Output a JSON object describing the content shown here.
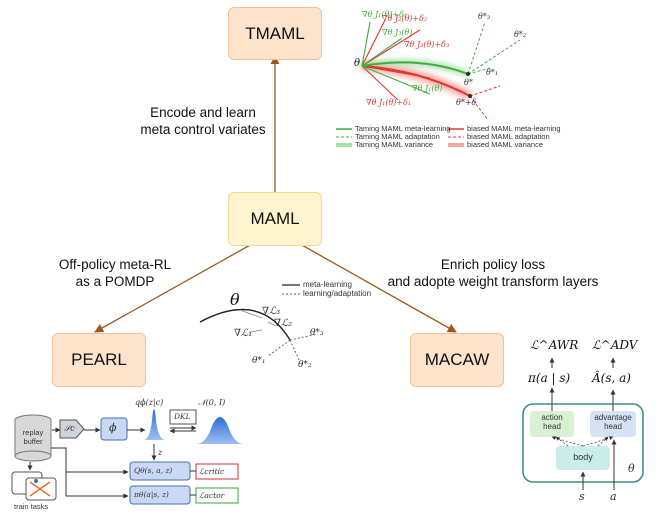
{
  "nodes": {
    "tmaml": "TMAML",
    "maml": "MAML",
    "pearl": "PEARL",
    "macaw": "MACAW"
  },
  "edges": {
    "to_tmaml": [
      "Encode and learn",
      "meta control variates"
    ],
    "to_pearl": [
      "Off-policy meta-RL",
      "as a POMDP"
    ],
    "to_macaw": [
      "Enrich policy loss",
      "and adopte weight transform layers"
    ]
  },
  "tmaml_figure": {
    "theta": "θ",
    "grads": [
      "∇θ J₁(θ)+δ₁",
      "∇θ J₂(θ)+δ₂",
      "∇θ J₃(θ)",
      "∇θ J₃(θ)+δ₃",
      "∇θ J₁(θ)",
      "∇θ J₁(θ)+δ₁"
    ],
    "thetas": [
      "θ*₃",
      "θ*₂",
      "θ*",
      "θ*₁",
      "θ*+δ"
    ],
    "legend": [
      {
        "text": "Taming MAML meta-learning",
        "color": "#3fae3f"
      },
      {
        "text": "Taming MAML adaptation",
        "color": "#3fae3f"
      },
      {
        "text": "Taming MAML variance",
        "color": "#8fd48f"
      },
      {
        "text": "biased MAML meta-learning",
        "color": "#e0382e"
      },
      {
        "text": "biased MAML adaptation",
        "color": "#e0382e"
      },
      {
        "text": "biased MAML variance",
        "color": "#f4a6a0"
      }
    ]
  },
  "maml_figure": {
    "theta": "θ",
    "legend": [
      "meta-learning",
      "learning/adaptation"
    ],
    "labels": [
      "∇ℒ₃",
      "∇ℒ₂",
      "∇ℒ₁",
      "θ*₃",
      "θ*₁",
      "θ*₂"
    ]
  },
  "pearl_figure": {
    "buffer": [
      "replay",
      "buffer"
    ],
    "train_tasks": "train tasks",
    "sc": "𝒮c",
    "phi": "ϕ",
    "q_phi": "qϕ(z|c)",
    "normal": "𝒩(0, I)",
    "dkl": "DKL",
    "z": "z",
    "critic_fn": "Qθ(s, a, z)",
    "critic_loss": "ℒcritic",
    "actor_fn": "πθ(a|s, z)",
    "actor_loss": "ℒactor"
  },
  "macaw_figure": {
    "l_awr": "ℒ^AWR",
    "l_adv": "ℒ^ADV",
    "pi": "π(a | s)",
    "a_hat": "Â(s, a)",
    "action_head": [
      "action",
      "head"
    ],
    "advantage_head": [
      "advantage",
      "head"
    ],
    "body": "body",
    "theta": "θ",
    "s": "s",
    "a": "a"
  }
}
